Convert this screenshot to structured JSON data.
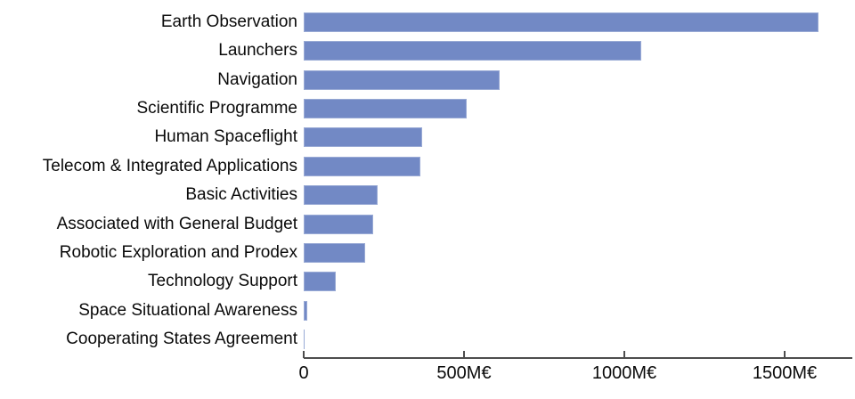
{
  "chart_data": {
    "type": "bar",
    "orientation": "horizontal",
    "title": "",
    "xlabel": "",
    "ylabel": "",
    "unit": "M€",
    "categories": [
      "Earth Observation",
      "Launchers",
      "Navigation",
      "Scientific Programme",
      "Human Spaceflight",
      "Telecom & Integrated Applications",
      "Basic Activities",
      "Associated with General Budget",
      "Robotic Exploration and Prodex",
      "Technology Support",
      "Space Situational Awareness",
      "Cooperating States Agreement"
    ],
    "values": [
      1605,
      1052,
      612,
      508,
      369,
      364,
      231,
      216,
      193,
      100,
      10,
      3
    ],
    "x_ticks": [
      0,
      500,
      1000,
      1500
    ],
    "x_tick_labels": [
      "0",
      "500M€",
      "1000M€",
      "1500M€"
    ],
    "xlim": [
      0,
      1711
    ],
    "grid": false,
    "legend": false,
    "colors": {
      "bar": "#7289c5",
      "axis": "#4d4d4d",
      "text": "#0a0a0a",
      "background": "#ffffff"
    }
  }
}
